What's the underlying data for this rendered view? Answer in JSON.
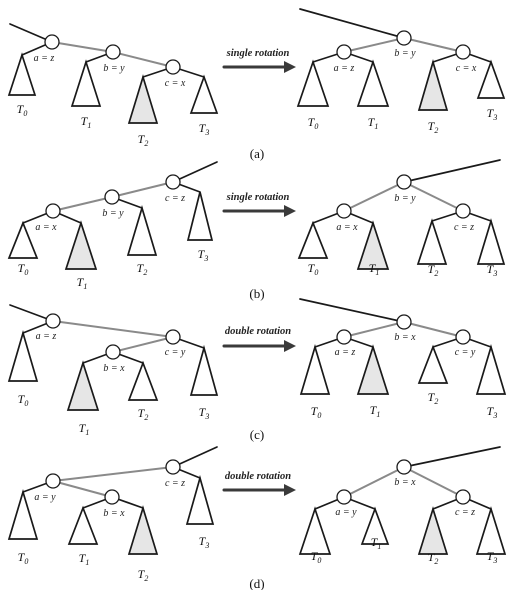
{
  "panels": [
    {
      "id": "a",
      "caption": "(a)",
      "operation": "single rotation",
      "before": {
        "nodes": [
          {
            "key": "a",
            "label": "a = z"
          },
          {
            "key": "b",
            "label": "b = y"
          },
          {
            "key": "c",
            "label": "c = x"
          }
        ],
        "subtrees": [
          {
            "sub": "0",
            "shaded": false
          },
          {
            "sub": "1",
            "shaded": false
          },
          {
            "sub": "2",
            "shaded": true
          },
          {
            "sub": "3",
            "shaded": false
          }
        ]
      },
      "after": {
        "nodes": [
          {
            "key": "a",
            "label": "a = z"
          },
          {
            "key": "b",
            "label": "b = y"
          },
          {
            "key": "c",
            "label": "c = x"
          }
        ],
        "subtrees": [
          {
            "sub": "0",
            "shaded": false
          },
          {
            "sub": "1",
            "shaded": false
          },
          {
            "sub": "2",
            "shaded": true
          },
          {
            "sub": "3",
            "shaded": false
          }
        ]
      }
    },
    {
      "id": "b",
      "caption": "(b)",
      "operation": "single rotation",
      "before": {
        "nodes": [
          {
            "key": "a",
            "label": "a = x"
          },
          {
            "key": "b",
            "label": "b = y"
          },
          {
            "key": "c",
            "label": "c = z"
          }
        ],
        "subtrees": [
          {
            "sub": "0",
            "shaded": false
          },
          {
            "sub": "1",
            "shaded": true
          },
          {
            "sub": "2",
            "shaded": false
          },
          {
            "sub": "3",
            "shaded": false
          }
        ]
      },
      "after": {
        "nodes": [
          {
            "key": "a",
            "label": "a = x"
          },
          {
            "key": "b",
            "label": "b = y"
          },
          {
            "key": "c",
            "label": "c = z"
          }
        ],
        "subtrees": [
          {
            "sub": "0",
            "shaded": false
          },
          {
            "sub": "1",
            "shaded": true
          },
          {
            "sub": "2",
            "shaded": false
          },
          {
            "sub": "3",
            "shaded": false
          }
        ]
      }
    },
    {
      "id": "c",
      "caption": "(c)",
      "operation": "double rotation",
      "before": {
        "nodes": [
          {
            "key": "a",
            "label": "a = z"
          },
          {
            "key": "b",
            "label": "b = x"
          },
          {
            "key": "c",
            "label": "c = y"
          }
        ],
        "subtrees": [
          {
            "sub": "0",
            "shaded": false
          },
          {
            "sub": "1",
            "shaded": true
          },
          {
            "sub": "2",
            "shaded": false
          },
          {
            "sub": "3",
            "shaded": false
          }
        ]
      },
      "after": {
        "nodes": [
          {
            "key": "a",
            "label": "a = z"
          },
          {
            "key": "b",
            "label": "b = x"
          },
          {
            "key": "c",
            "label": "c = y"
          }
        ],
        "subtrees": [
          {
            "sub": "0",
            "shaded": false
          },
          {
            "sub": "1",
            "shaded": true
          },
          {
            "sub": "2",
            "shaded": false
          },
          {
            "sub": "3",
            "shaded": false
          }
        ]
      }
    },
    {
      "id": "d",
      "caption": "(d)",
      "operation": "double rotation",
      "before": {
        "nodes": [
          {
            "key": "a",
            "label": "a = y"
          },
          {
            "key": "b",
            "label": "b = x"
          },
          {
            "key": "c",
            "label": "c = z"
          }
        ],
        "subtrees": [
          {
            "sub": "0",
            "shaded": false
          },
          {
            "sub": "1",
            "shaded": false
          },
          {
            "sub": "2",
            "shaded": true
          },
          {
            "sub": "3",
            "shaded": false
          }
        ]
      },
      "after": {
        "nodes": [
          {
            "key": "a",
            "label": "a = y"
          },
          {
            "key": "b",
            "label": "b = x"
          },
          {
            "key": "c",
            "label": "c = z"
          }
        ],
        "subtrees": [
          {
            "sub": "0",
            "shaded": false
          },
          {
            "sub": "1",
            "shaded": false
          },
          {
            "sub": "2",
            "shaded": true
          },
          {
            "sub": "3",
            "shaded": false
          }
        ]
      }
    }
  ],
  "colors": {
    "line": "#1a1a1a",
    "grey_edge": "#8a8a8a",
    "node_fill": "#ffffff",
    "shade": "#e6e6e6",
    "arrow": "#3a3a3a"
  }
}
